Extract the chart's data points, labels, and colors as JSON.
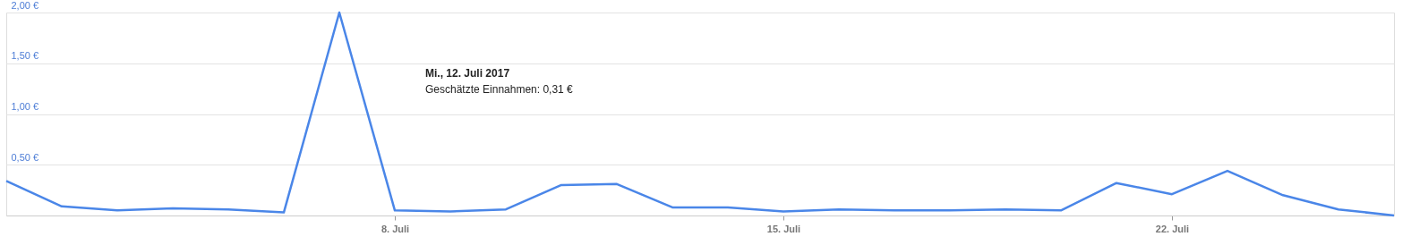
{
  "chart_data": {
    "type": "line",
    "x": [
      "2017-07-01",
      "2017-07-02",
      "2017-07-03",
      "2017-07-04",
      "2017-07-05",
      "2017-07-06",
      "2017-07-07",
      "2017-07-08",
      "2017-07-09",
      "2017-07-10",
      "2017-07-11",
      "2017-07-12",
      "2017-07-13",
      "2017-07-14",
      "2017-07-15",
      "2017-07-16",
      "2017-07-17",
      "2017-07-18",
      "2017-07-19",
      "2017-07-20",
      "2017-07-21",
      "2017-07-22",
      "2017-07-23",
      "2017-07-24",
      "2017-07-25",
      "2017-07-26"
    ],
    "series": [
      {
        "color": "#4a86e8",
        "values": [
          0.34,
          0.09,
          0.05,
          0.07,
          0.06,
          0.03,
          2.0,
          0.05,
          0.04,
          0.06,
          0.3,
          0.31,
          0.08,
          0.08,
          0.04,
          0.06,
          0.05,
          0.05,
          0.06,
          0.05,
          0.32,
          0.21,
          0.44,
          0.2,
          0.06,
          0.0
        ]
      }
    ],
    "xlim": [
      "2017-07-01",
      "2017-07-26"
    ],
    "xticks": [
      {
        "value": "2017-07-08",
        "label": "8. Juli"
      },
      {
        "value": "2017-07-15",
        "label": "15. Juli"
      },
      {
        "value": "2017-07-22",
        "label": "22. Juli"
      }
    ],
    "ylim": [
      0,
      2.0
    ],
    "yticks": [
      {
        "value": 0,
        "label": null
      },
      {
        "value": 0.5,
        "label": "0,50 €"
      },
      {
        "value": 1.0,
        "label": "1,00 €"
      },
      {
        "value": 1.5,
        "label": "1,50 €"
      },
      {
        "value": 2.0,
        "label": "2,00 €"
      }
    ],
    "grid": "y",
    "marker": "none",
    "line_style": "solid",
    "annotations": [
      "Mi., 12. Juli 2017",
      "Geschätzte Einnahmen: 0,31 €"
    ]
  }
}
